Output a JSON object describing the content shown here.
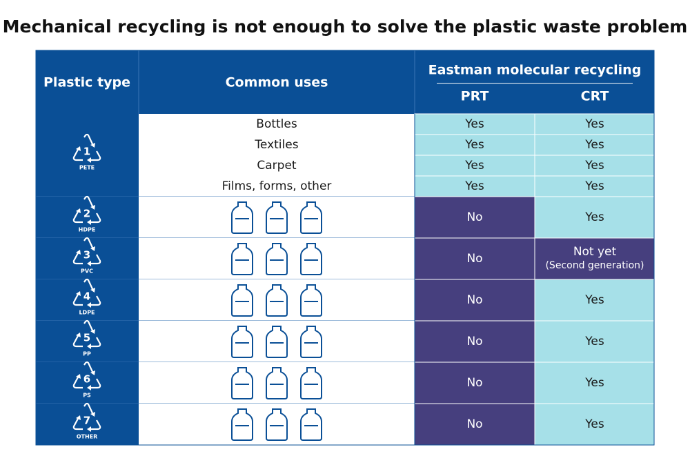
{
  "title": "Mechanical recycling is not enough to solve the plastic waste problem",
  "table": {
    "headers": {
      "plastic_type": "Plastic type",
      "common_uses": "Common uses",
      "group": "Eastman molecular recycling",
      "prt": "PRT",
      "crt": "CRT"
    },
    "rows": [
      {
        "code": "1",
        "resin": "PETE",
        "uses": [
          {
            "use": "Bottles",
            "prt": "Yes",
            "crt": "Yes"
          },
          {
            "use": "Textiles",
            "prt": "Yes",
            "crt": "Yes"
          },
          {
            "use": "Carpet",
            "prt": "Yes",
            "crt": "Yes"
          },
          {
            "use": "Films, forms, other",
            "prt": "Yes",
            "crt": "Yes"
          }
        ]
      },
      {
        "code": "2",
        "resin": "HDPE",
        "prt": "No",
        "crt": "Yes"
      },
      {
        "code": "3",
        "resin": "PVC",
        "prt": "No",
        "crt": "Not yet",
        "crt_note": "(Second generation)"
      },
      {
        "code": "4",
        "resin": "LDPE",
        "prt": "No",
        "crt": "Yes"
      },
      {
        "code": "5",
        "resin": "PP",
        "prt": "No",
        "crt": "Yes"
      },
      {
        "code": "6",
        "resin": "PS",
        "prt": "No",
        "crt": "Yes"
      },
      {
        "code": "7",
        "resin": "OTHER",
        "prt": "No",
        "crt": "Yes"
      }
    ]
  }
}
